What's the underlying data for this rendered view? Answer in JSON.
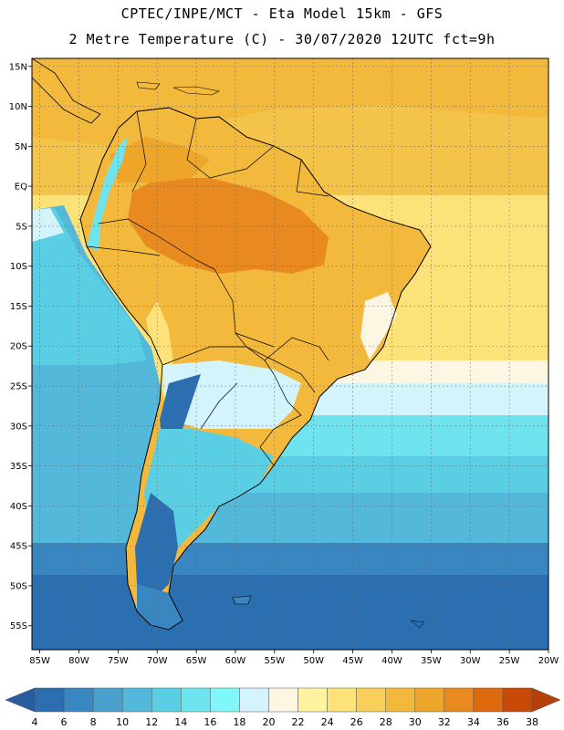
{
  "header": {
    "title_line1": "CPTEC/INPE/MCT -   Eta Model 15km - GFS",
    "title_line2": "2 Metre Temperature (C) - 30/07/2020 12UTC fct=9h"
  },
  "map": {
    "lat_labels": [
      "15N",
      "10N",
      "5N",
      "EQ",
      "5S",
      "10S",
      "15S",
      "20S",
      "25S",
      "30S",
      "35S",
      "40S",
      "45S",
      "50S",
      "55S"
    ],
    "lat_values": [
      15,
      10,
      5,
      0,
      -5,
      -10,
      -15,
      -20,
      -25,
      -30,
      -35,
      -40,
      -45,
      -50,
      -55
    ],
    "lon_labels": [
      "85W",
      "80W",
      "75W",
      "70W",
      "65W",
      "60W",
      "55W",
      "50W",
      "45W",
      "40W",
      "35W",
      "30W",
      "25W",
      "20W"
    ],
    "lon_values": [
      -85,
      -80,
      -75,
      -70,
      -65,
      -60,
      -55,
      -50,
      -45,
      -40,
      -35,
      -30,
      -25,
      -20
    ],
    "extent": {
      "lon_min": -86,
      "lon_max": -20,
      "lat_min": -58,
      "lat_max": 16
    }
  },
  "colorbar": {
    "labels": [
      "4",
      "6",
      "8",
      "10",
      "12",
      "14",
      "16",
      "18",
      "20",
      "22",
      "24",
      "26",
      "28",
      "30",
      "32",
      "34",
      "36",
      "38"
    ],
    "colors": [
      "#2b6fb0",
      "#3a86c0",
      "#4aa2cc",
      "#54b8da",
      "#5acfe3",
      "#6fe3ee",
      "#7ff7fb",
      "#d4f4fb",
      "#fdf6e3",
      "#fff3a0",
      "#fde27a",
      "#f8cf5a",
      "#f2b93d",
      "#eda52a",
      "#e88a20",
      "#de6a10",
      "#c84a06"
    ],
    "low_arrow_color": "#2a5d9f",
    "high_arrow_color": "#b4400a"
  }
}
